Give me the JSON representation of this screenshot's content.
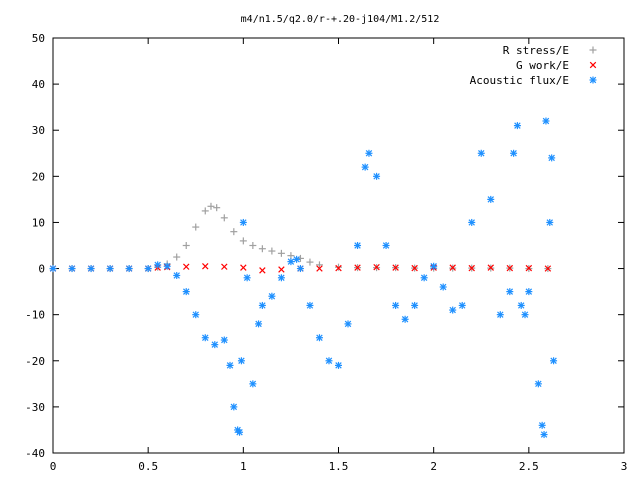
{
  "chart_data": {
    "type": "scatter",
    "title": "m4/n1.5/q2.0/r-+.20-j104/M1.2/512",
    "xlabel": "",
    "ylabel": "",
    "xlim": [
      0,
      3
    ],
    "ylim": [
      -40,
      50
    ],
    "xticks": [
      0,
      0.5,
      1,
      1.5,
      2,
      2.5,
      3
    ],
    "xtick_labels": [
      "0",
      "0.5",
      "1",
      "1.5",
      "2",
      "2.5",
      "3"
    ],
    "yticks": [
      -40,
      -30,
      -20,
      -10,
      0,
      10,
      20,
      30,
      40,
      50
    ],
    "ytick_labels": [
      "-40",
      "-30",
      "-20",
      "-10",
      "0",
      "10",
      "20",
      "30",
      "40",
      "50"
    ],
    "grid": false,
    "legend_position": "top-right",
    "series": [
      {
        "name": "R stress/E",
        "marker": "plus",
        "color": "#a0a0a0",
        "points": [
          [
            0.0,
            0
          ],
          [
            0.1,
            0
          ],
          [
            0.2,
            0
          ],
          [
            0.3,
            0
          ],
          [
            0.4,
            0
          ],
          [
            0.5,
            0
          ],
          [
            0.55,
            0.3
          ],
          [
            0.6,
            1
          ],
          [
            0.65,
            2.5
          ],
          [
            0.7,
            5
          ],
          [
            0.75,
            9
          ],
          [
            0.8,
            12.5
          ],
          [
            0.83,
            13.5
          ],
          [
            0.86,
            13.2
          ],
          [
            0.9,
            11
          ],
          [
            0.95,
            8
          ],
          [
            1.0,
            6
          ],
          [
            1.05,
            5
          ],
          [
            1.1,
            4.3
          ],
          [
            1.15,
            3.8
          ],
          [
            1.2,
            3.3
          ],
          [
            1.25,
            2.8
          ],
          [
            1.3,
            2.2
          ],
          [
            1.35,
            1.4
          ],
          [
            1.4,
            0.8
          ],
          [
            1.5,
            0.3
          ],
          [
            1.6,
            0.2
          ],
          [
            1.7,
            0.2
          ],
          [
            1.8,
            0.2
          ],
          [
            1.9,
            0.1
          ],
          [
            2.0,
            0.1
          ],
          [
            2.1,
            0.1
          ],
          [
            2.2,
            0.1
          ],
          [
            2.3,
            0.1
          ],
          [
            2.4,
            0.1
          ],
          [
            2.5,
            0
          ],
          [
            2.6,
            0
          ]
        ]
      },
      {
        "name": "G work/E",
        "marker": "cross",
        "color": "#ff0000",
        "points": [
          [
            0.0,
            0
          ],
          [
            0.1,
            0
          ],
          [
            0.2,
            0
          ],
          [
            0.3,
            0
          ],
          [
            0.4,
            0
          ],
          [
            0.5,
            0
          ],
          [
            0.55,
            0.2
          ],
          [
            0.6,
            0.3
          ],
          [
            0.7,
            0.4
          ],
          [
            0.8,
            0.5
          ],
          [
            0.9,
            0.4
          ],
          [
            1.0,
            0.2
          ],
          [
            1.1,
            -0.4
          ],
          [
            1.2,
            -0.2
          ],
          [
            1.3,
            0
          ],
          [
            1.4,
            0
          ],
          [
            1.5,
            0.1
          ],
          [
            1.6,
            0.2
          ],
          [
            1.7,
            0.3
          ],
          [
            1.8,
            0.2
          ],
          [
            1.9,
            0.1
          ],
          [
            2.0,
            0.2
          ],
          [
            2.1,
            0.2
          ],
          [
            2.2,
            0.1
          ],
          [
            2.3,
            0.2
          ],
          [
            2.4,
            0.1
          ],
          [
            2.5,
            0.1
          ],
          [
            2.6,
            0
          ]
        ]
      },
      {
        "name": "Acoustic flux/E",
        "marker": "star",
        "color": "#1e90ff",
        "points": [
          [
            0.0,
            0
          ],
          [
            0.1,
            0
          ],
          [
            0.2,
            0
          ],
          [
            0.3,
            0
          ],
          [
            0.4,
            0
          ],
          [
            0.5,
            0
          ],
          [
            0.55,
            0.8
          ],
          [
            0.6,
            0.5
          ],
          [
            0.65,
            -1.5
          ],
          [
            0.7,
            -5
          ],
          [
            0.75,
            -10
          ],
          [
            0.8,
            -15
          ],
          [
            0.85,
            -16.5
          ],
          [
            0.9,
            -15.5
          ],
          [
            0.93,
            -21
          ],
          [
            0.95,
            -30
          ],
          [
            0.97,
            -35
          ],
          [
            0.98,
            -35.5
          ],
          [
            0.99,
            -20
          ],
          [
            1.0,
            10
          ],
          [
            1.02,
            -2
          ],
          [
            1.05,
            -25
          ],
          [
            1.08,
            -12
          ],
          [
            1.1,
            -8
          ],
          [
            1.15,
            -6
          ],
          [
            1.2,
            -2
          ],
          [
            1.25,
            1.5
          ],
          [
            1.28,
            2
          ],
          [
            1.3,
            0
          ],
          [
            1.35,
            -8
          ],
          [
            1.4,
            -15
          ],
          [
            1.45,
            -20
          ],
          [
            1.5,
            -21
          ],
          [
            1.55,
            -12
          ],
          [
            1.6,
            5
          ],
          [
            1.64,
            22
          ],
          [
            1.66,
            25
          ],
          [
            1.7,
            20
          ],
          [
            1.75,
            5
          ],
          [
            1.8,
            -8
          ],
          [
            1.85,
            -11
          ],
          [
            1.9,
            -8
          ],
          [
            1.95,
            -2
          ],
          [
            2.0,
            0.5
          ],
          [
            2.05,
            -4
          ],
          [
            2.1,
            -9
          ],
          [
            2.15,
            -8
          ],
          [
            2.2,
            10
          ],
          [
            2.25,
            25
          ],
          [
            2.3,
            15
          ],
          [
            2.35,
            -10
          ],
          [
            2.4,
            -5
          ],
          [
            2.42,
            25
          ],
          [
            2.44,
            31
          ],
          [
            2.46,
            -8
          ],
          [
            2.48,
            -10
          ],
          [
            2.5,
            -5
          ],
          [
            2.55,
            -25
          ],
          [
            2.57,
            -34
          ],
          [
            2.58,
            -36
          ],
          [
            2.59,
            32
          ],
          [
            2.61,
            10
          ],
          [
            2.62,
            24
          ],
          [
            2.63,
            -20
          ]
        ]
      }
    ]
  }
}
